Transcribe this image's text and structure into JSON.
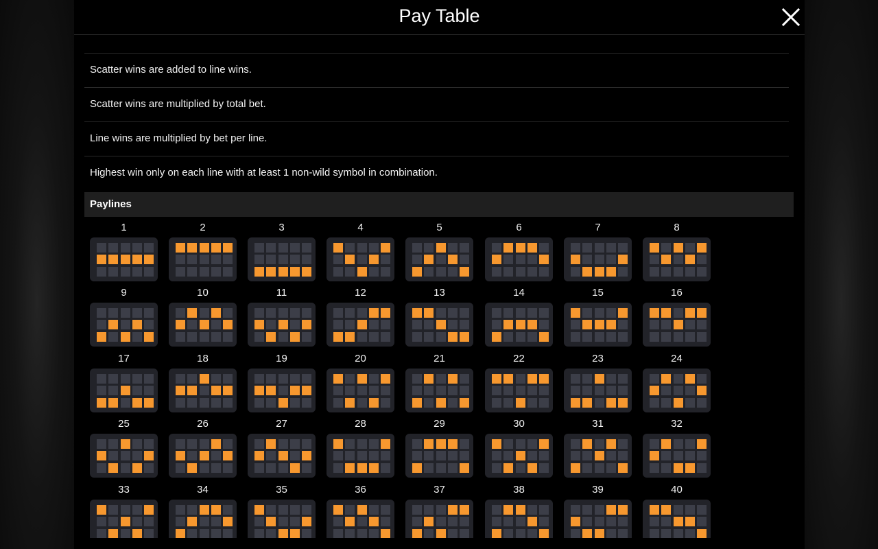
{
  "header": {
    "title": "Pay Table"
  },
  "rules": [
    "Scatter wins are added to line wins.",
    "Scatter wins are multiplied by total bet.",
    "Line wins are multiplied by bet per line.",
    "Highest win only on each line with at least 1 non-wild symbol in combination."
  ],
  "paylines_section": {
    "title": "Paylines"
  },
  "colors": {
    "active_cell": "#f7982f",
    "inactive_cell": "#3c3e48",
    "card_background": "#222329"
  },
  "paylines": [
    {
      "number": "1",
      "rows": [
        1,
        1,
        1,
        1,
        1
      ]
    },
    {
      "number": "2",
      "rows": [
        0,
        0,
        0,
        0,
        0
      ]
    },
    {
      "number": "3",
      "rows": [
        2,
        2,
        2,
        2,
        2
      ]
    },
    {
      "number": "4",
      "rows": [
        0,
        1,
        2,
        1,
        0
      ]
    },
    {
      "number": "5",
      "rows": [
        2,
        1,
        0,
        1,
        2
      ]
    },
    {
      "number": "6",
      "rows": [
        1,
        0,
        0,
        0,
        1
      ]
    },
    {
      "number": "7",
      "rows": [
        1,
        2,
        2,
        2,
        1
      ]
    },
    {
      "number": "8",
      "rows": [
        0,
        1,
        0,
        1,
        0
      ]
    },
    {
      "number": "9",
      "rows": [
        2,
        1,
        2,
        1,
        2
      ]
    },
    {
      "number": "10",
      "rows": [
        1,
        0,
        1,
        0,
        1
      ]
    },
    {
      "number": "11",
      "rows": [
        1,
        2,
        1,
        2,
        1
      ]
    },
    {
      "number": "12",
      "rows": [
        2,
        2,
        1,
        0,
        0
      ]
    },
    {
      "number": "13",
      "rows": [
        0,
        0,
        1,
        2,
        2
      ]
    },
    {
      "number": "14",
      "rows": [
        2,
        1,
        1,
        1,
        2
      ]
    },
    {
      "number": "15",
      "rows": [
        0,
        1,
        1,
        1,
        0
      ]
    },
    {
      "number": "16",
      "rows": [
        0,
        0,
        1,
        0,
        0
      ]
    },
    {
      "number": "17",
      "rows": [
        2,
        2,
        1,
        2,
        2
      ]
    },
    {
      "number": "18",
      "rows": [
        1,
        1,
        0,
        1,
        1
      ]
    },
    {
      "number": "19",
      "rows": [
        1,
        1,
        2,
        1,
        1
      ]
    },
    {
      "number": "20",
      "rows": [
        0,
        2,
        0,
        2,
        0
      ]
    },
    {
      "number": "21",
      "rows": [
        2,
        0,
        2,
        0,
        2
      ]
    },
    {
      "number": "22",
      "rows": [
        0,
        0,
        2,
        0,
        0
      ]
    },
    {
      "number": "23",
      "rows": [
        2,
        2,
        0,
        2,
        2
      ]
    },
    {
      "number": "24",
      "rows": [
        1,
        0,
        2,
        0,
        1
      ]
    },
    {
      "number": "25",
      "rows": [
        1,
        2,
        0,
        2,
        1
      ]
    },
    {
      "number": "26",
      "rows": [
        1,
        2,
        1,
        0,
        1
      ]
    },
    {
      "number": "27",
      "rows": [
        1,
        0,
        1,
        2,
        1
      ]
    },
    {
      "number": "28",
      "rows": [
        0,
        2,
        2,
        2,
        0
      ]
    },
    {
      "number": "29",
      "rows": [
        2,
        0,
        0,
        0,
        2
      ]
    },
    {
      "number": "30",
      "rows": [
        0,
        2,
        1,
        2,
        0
      ]
    },
    {
      "number": "31",
      "rows": [
        2,
        0,
        1,
        0,
        2
      ]
    },
    {
      "number": "32",
      "rows": [
        1,
        0,
        2,
        2,
        0
      ]
    },
    {
      "number": "33",
      "rows": [
        0,
        2,
        1,
        2,
        0
      ]
    },
    {
      "number": "34",
      "rows": [
        2,
        1,
        0,
        0,
        1
      ]
    },
    {
      "number": "35",
      "rows": [
        0,
        1,
        2,
        2,
        1
      ]
    },
    {
      "number": "36",
      "rows": [
        0,
        1,
        0,
        1,
        2
      ]
    },
    {
      "number": "37",
      "rows": [
        2,
        1,
        2,
        0,
        0
      ]
    },
    {
      "number": "38",
      "rows": [
        2,
        0,
        0,
        1,
        2
      ]
    },
    {
      "number": "39",
      "rows": [
        1,
        2,
        2,
        0,
        0
      ]
    },
    {
      "number": "40",
      "rows": [
        0,
        0,
        1,
        1,
        2
      ]
    }
  ]
}
